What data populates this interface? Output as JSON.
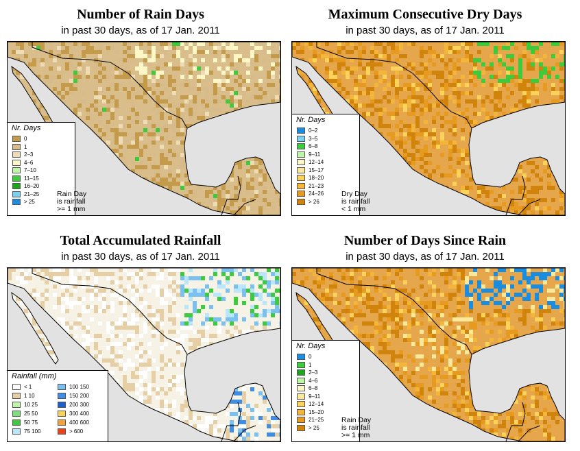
{
  "panels": [
    {
      "id": "rain-days",
      "title": "Number of Rain Days",
      "subtitle": "in past 30 days, as of  17 Jan. 2011",
      "land_color": "#d9be8c",
      "legend": {
        "title": "Nr. Days",
        "items": [
          {
            "label": "0",
            "color": "#c49a4b"
          },
          {
            "label": "1",
            "color": "#d8bb8a"
          },
          {
            "label": "2–3",
            "color": "#eddcb6"
          },
          {
            "label": "4–6",
            "color": "#fdf6c6"
          },
          {
            "label": "7–10",
            "color": "#bff5a6"
          },
          {
            "label": "11–15",
            "color": "#3ccb3c"
          },
          {
            "label": "16–20",
            "color": "#1ca51c"
          },
          {
            "label": "21–25",
            "color": "#7ad2f0"
          },
          {
            "label": "> 25",
            "color": "#1a8de0"
          }
        ],
        "note": [
          "Rain Day",
          "is rainfall",
          ">= 1 mm"
        ]
      }
    },
    {
      "id": "max-dry-days",
      "title": "Maximum Consecutive Dry Days",
      "subtitle": "in past 30 days, as of  17 Jan. 2011",
      "land_color": "#e6a64c",
      "legend": {
        "title": "Nr. Days",
        "items": [
          {
            "label": "0–2",
            "color": "#1a8de0"
          },
          {
            "label": "3–5",
            "color": "#7ad2f0"
          },
          {
            "label": "6–8",
            "color": "#3ccb3c"
          },
          {
            "label": "9–11",
            "color": "#bff5a6"
          },
          {
            "label": "12–14",
            "color": "#fdf6c6"
          },
          {
            "label": "15–17",
            "color": "#fce89a"
          },
          {
            "label": "18–20",
            "color": "#fbd35a"
          },
          {
            "label": "21–23",
            "color": "#f4b63a"
          },
          {
            "label": "24–26",
            "color": "#e69a20"
          },
          {
            "label": "> 26",
            "color": "#d0840c"
          }
        ],
        "note": [
          "Dry Day",
          "is rainfall",
          "< 1 mm"
        ]
      }
    },
    {
      "id": "total-rainfall",
      "title": "Total Accumulated Rainfall",
      "subtitle": "in past 30 days, as of  17 Jan. 2011",
      "land_color": "#f7f2e6",
      "legend": {
        "title": "Rainfall (mm)",
        "items": [
          {
            "label": "< 1",
            "color": "#ffffff"
          },
          {
            "label": "1   10",
            "color": "#e6cfa5"
          },
          {
            "label": "10   25",
            "color": "#bff5a6"
          },
          {
            "label": "25   50",
            "color": "#7fe07f"
          },
          {
            "label": "50   75",
            "color": "#3ccb3c"
          },
          {
            "label": "75   100",
            "color": "#b9e6fa"
          },
          {
            "label": "100   150",
            "color": "#7ac0f0"
          },
          {
            "label": "150   200",
            "color": "#3e8ee8"
          },
          {
            "label": "200   300",
            "color": "#1b5fd0"
          },
          {
            "label": "300   400",
            "color": "#fbd35a"
          },
          {
            "label": "400   600",
            "color": "#f3a23a"
          },
          {
            "label": "> 600",
            "color": "#f04018"
          }
        ],
        "note": []
      }
    },
    {
      "id": "days-since-rain",
      "title": "Number of Days Since Rain",
      "subtitle": "in past 30 days, as of  17 Jan. 2011",
      "land_color": "#e6a64c",
      "legend": {
        "title": "Nr. Days",
        "items": [
          {
            "label": "0",
            "color": "#1a8de0"
          },
          {
            "label": "1",
            "color": "#3ccb3c"
          },
          {
            "label": "2–3",
            "color": "#1ca51c"
          },
          {
            "label": "4–6",
            "color": "#bff5a6"
          },
          {
            "label": "6–8",
            "color": "#fdf6c6"
          },
          {
            "label": "9–11",
            "color": "#fce89a"
          },
          {
            "label": "12–14",
            "color": "#fbd35a"
          },
          {
            "label": "15–20",
            "color": "#f4b63a"
          },
          {
            "label": "21–25",
            "color": "#e69a20"
          },
          {
            "label": "> 25",
            "color": "#d0840c"
          }
        ],
        "note": [
          "Rain Day",
          "is rainfall",
          ">= 1 mm"
        ]
      }
    }
  ],
  "colors": {
    "ocean": "#e2e2e2",
    "border": "#000000"
  }
}
